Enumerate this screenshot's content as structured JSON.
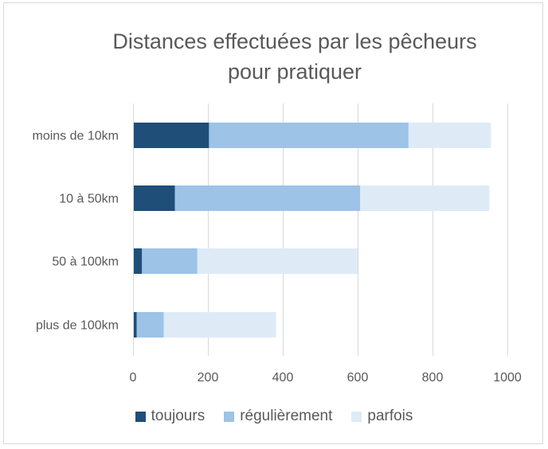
{
  "chart_data": {
    "type": "bar",
    "orientation": "horizontal",
    "stacked": true,
    "title": "Distances effectuées par les pêcheurs pour pratiquer",
    "title_lines": [
      "Distances effectuées par les pêcheurs",
      "pour pratiquer"
    ],
    "categories": [
      "moins de 10km",
      "10 à 50km",
      "50 à 100km",
      "plus de 100km"
    ],
    "series": [
      {
        "name": "toujours",
        "color": "#1f4e79",
        "values": [
          203,
          112,
          24,
          10
        ]
      },
      {
        "name": "régulièrement",
        "color": "#9dc3e6",
        "values": [
          533,
          495,
          148,
          72
        ]
      },
      {
        "name": "parfois",
        "color": "#deebf7",
        "values": [
          220,
          345,
          428,
          300
        ]
      }
    ],
    "xlim": [
      0,
      1000
    ],
    "xticks": [
      0,
      200,
      400,
      600,
      800,
      1000
    ],
    "xtick_labels": [
      "0",
      "200",
      "400",
      "600",
      "800",
      "1000"
    ],
    "grid": "vertical",
    "legend_position": "bottom"
  }
}
